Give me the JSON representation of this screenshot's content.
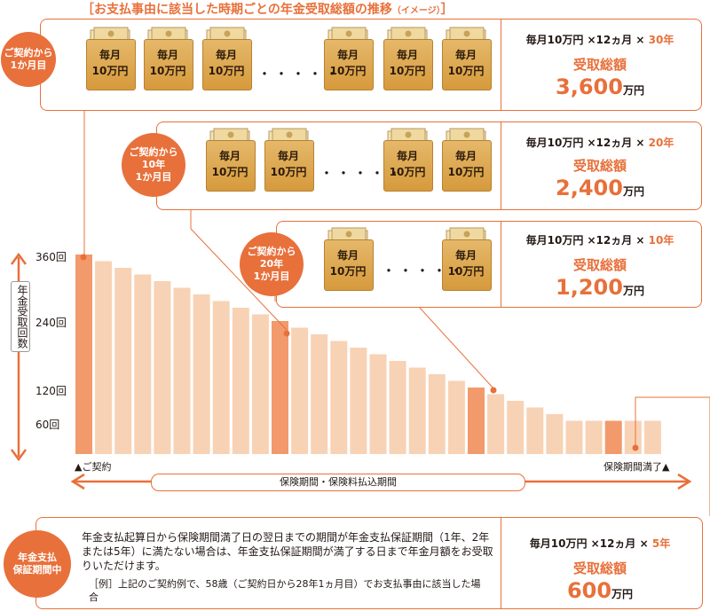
{
  "title": "［お支払事由に該当した時期ごとの年金受取総額の推移",
  "title_sub": "（イメージ）",
  "title_close": "］",
  "bag": {
    "line1": "毎月",
    "line2": "10万円"
  },
  "dots": "・・・・・",
  "rows": [
    {
      "circle": "ご契約から\n1か月目",
      "calc_prefix": "毎月10万円 ×12ヵ月 × ",
      "years": "30年",
      "total_label": "受取総額",
      "amount": "3,600",
      "unit": "万円"
    },
    {
      "circle": "ご契約から\n10年\n1か月目",
      "calc_prefix": "毎月10万円 ×12ヵ月 × ",
      "years": "20年",
      "total_label": "受取総額",
      "amount": "2,400",
      "unit": "万円"
    },
    {
      "circle": "ご契約から\n20年\n1か月目",
      "calc_prefix": "毎月10万円 ×12ヵ月 × ",
      "years": "10年",
      "total_label": "受取総額",
      "amount": "1,200",
      "unit": "万円"
    },
    {
      "circle": "年金支払\n保証期間中",
      "calc_prefix": "毎月10万円 ×12ヵ月 × ",
      "years": "5年",
      "total_label": "受取総額",
      "amount": "600",
      "unit": "万円"
    }
  ],
  "y_axis_label": "年金受取回数",
  "y_ticks": [
    "360回",
    "240回",
    "120回",
    "60回"
  ],
  "start_label": "▲ご契約",
  "end_label": "保険期間満了▲",
  "period_label": "保険期間・保険料払込期間",
  "note_text": "年金支払起算日から保険期間満了日の翌日までの期間が年金支払保証期間（1年、2年または5年）に満たない場合は、年金支払保証期間が満了する日まで年金月額をお受取りいただけます。",
  "example_text": "［例］上記のご契約例で、58歳（ご契約日から28年1ヵ月目）でお支払事由に該当した場合",
  "chart_data": {
    "type": "bar",
    "ylabel": "年金受取回数",
    "yticks": [
      360,
      240,
      120,
      60
    ],
    "values": [
      360,
      348,
      336,
      324,
      312,
      300,
      288,
      276,
      264,
      252,
      240,
      228,
      216,
      204,
      192,
      180,
      168,
      156,
      144,
      132,
      120,
      108,
      96,
      84,
      72,
      60,
      60,
      60,
      60,
      60
    ],
    "highlight_indices": [
      0,
      10,
      20,
      27
    ],
    "colors": {
      "bar": "#f8d2b5",
      "highlight": "#f29a6b",
      "accent": "#e8703a"
    }
  }
}
